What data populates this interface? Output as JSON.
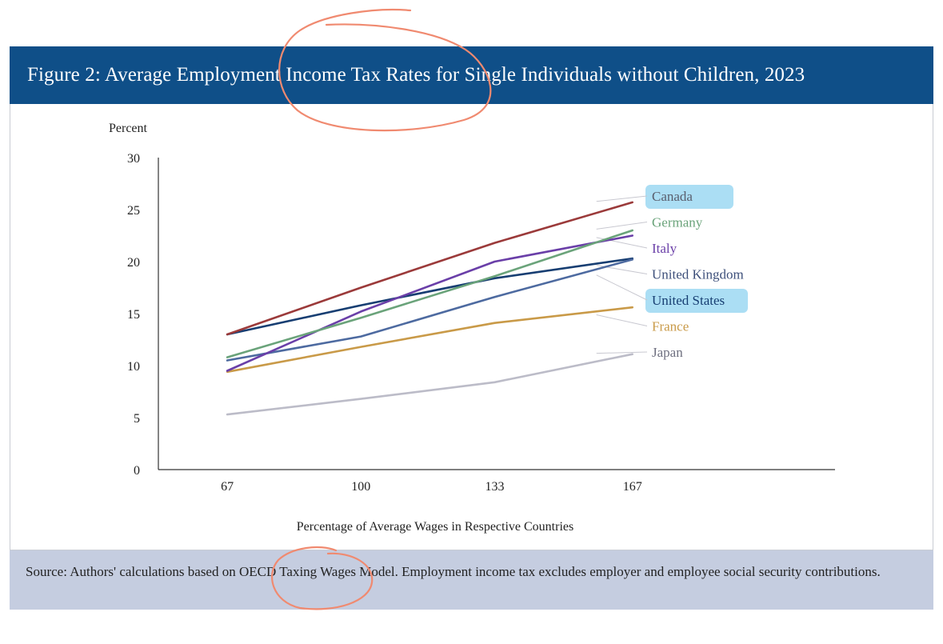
{
  "header": {
    "title": "Figure 2: Average Employment Income Tax Rates for Single Individuals without Children, 2023"
  },
  "footer": {
    "source": "Source: Authors' calculations based on OECD Taxing Wages Model. Employment income tax excludes employer and employee social security contributions."
  },
  "colors": {
    "header_bg": "#0f4f88",
    "footer_bg": "#c5cde0",
    "highlight": "#8fd3f0",
    "pen": "#f08a70"
  },
  "chart_data": {
    "type": "line",
    "title": "Figure 2: Average Employment Income Tax Rates for Single Individuals without Children, 2023",
    "xlabel": "Percentage of Average Wages in Respective Countries",
    "ylabel": "Percent",
    "x": [
      67,
      100,
      133,
      167
    ],
    "x_tick_labels": [
      "67",
      "100",
      "133",
      "167"
    ],
    "y_ticks": [
      0,
      5,
      10,
      15,
      20,
      25,
      30
    ],
    "ylim": [
      0,
      30
    ],
    "xlim": [
      50,
      217
    ],
    "legend_placement": "right, inline labels",
    "series": [
      {
        "name": "Canada",
        "values": [
          13.0,
          17.5,
          21.8,
          25.7
        ],
        "color": "#9b3a3a",
        "label_color": "#5a5f6e",
        "highlight": true
      },
      {
        "name": "Germany",
        "values": [
          10.8,
          14.6,
          18.6,
          23.0
        ],
        "color": "#6aa37a",
        "label_color": "#6aa37a",
        "highlight": false
      },
      {
        "name": "Italy",
        "values": [
          9.5,
          15.2,
          20.0,
          22.5
        ],
        "color": "#6a3fa8",
        "label_color": "#6a3fa8",
        "highlight": false
      },
      {
        "name": "United Kingdom",
        "values": [
          10.5,
          12.8,
          16.6,
          20.2
        ],
        "color": "#4d6aa0",
        "label_color": "#3d4f7a",
        "highlight": false
      },
      {
        "name": "United States",
        "values": [
          13.0,
          15.8,
          18.4,
          20.3
        ],
        "color": "#173e72",
        "label_color": "#173e72",
        "highlight": true
      },
      {
        "name": "France",
        "values": [
          9.4,
          11.8,
          14.1,
          15.6
        ],
        "color": "#c99a48",
        "label_color": "#c99a48",
        "highlight": false
      },
      {
        "name": "Japan",
        "values": [
          5.3,
          6.8,
          8.4,
          11.1
        ],
        "color": "#bcbcc8",
        "label_color": "#6f7080",
        "highlight": false
      }
    ]
  }
}
